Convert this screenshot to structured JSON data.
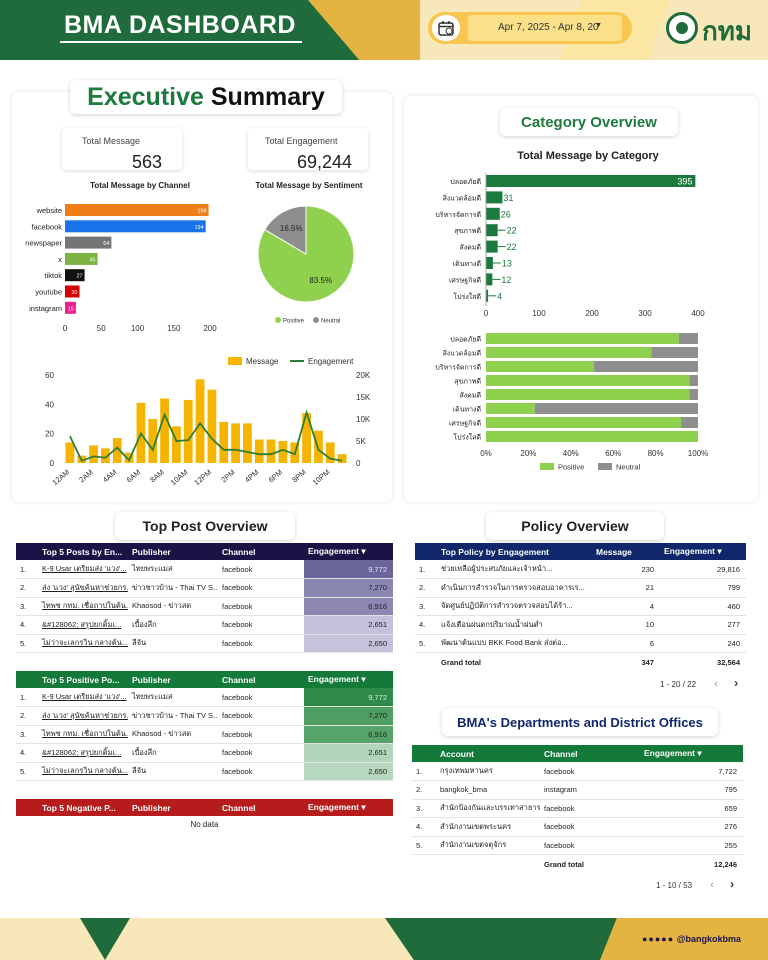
{
  "header": {
    "title": "BMA DASHBOARD",
    "date_range": "Apr 7, 2025 - Apr 8, 20",
    "logo_text": "กทม"
  },
  "executive": {
    "title_a": "Executive",
    "title_b": "Summary",
    "total_message_label": "Total Message",
    "total_message_value": "563",
    "total_engagement_label": "Total Engagement",
    "total_engagement_value": "69,244"
  },
  "channel_chart": {
    "title": "Total Message by Channel",
    "type": "bar",
    "categories": [
      "website",
      "facebook",
      "newspaper",
      "x",
      "tiktok",
      "youtube",
      "instagram"
    ],
    "values": [
      198,
      194,
      64,
      45,
      27,
      20,
      15
    ],
    "colors": [
      "#f07d16",
      "#1a73e8",
      "#757575",
      "#7cb342",
      "#111111",
      "#d50000",
      "#e91e8c"
    ],
    "xticks": [
      "0",
      "50",
      "100",
      "150",
      "200"
    ],
    "xlim": [
      0,
      200
    ]
  },
  "sentiment_chart": {
    "title": "Total Message by Sentiment",
    "type": "pie",
    "slices": [
      {
        "name": "Positive",
        "value": 83.5,
        "label": "83.5%",
        "color": "#8fd14f"
      },
      {
        "name": "Neutral",
        "value": 16.5,
        "label": "16.5%",
        "color": "#8e8e8e"
      }
    ]
  },
  "time_chart": {
    "type": "bar+line",
    "legend_message": "Message",
    "legend_engagement": "Engagement",
    "categories": [
      "12AM",
      "1AM",
      "2AM",
      "3AM",
      "4AM",
      "5AM",
      "6AM",
      "7AM",
      "8AM",
      "9AM",
      "10AM",
      "11AM",
      "12PM",
      "1PM",
      "2PM",
      "3PM",
      "4PM",
      "5PM",
      "6PM",
      "7PM",
      "8PM",
      "9PM",
      "10PM",
      "11PM"
    ],
    "x_tick_labels": [
      "12AM",
      "2AM",
      "4AM",
      "6AM",
      "8AM",
      "10AM",
      "12PM",
      "2PM",
      "4PM",
      "6PM",
      "8PM",
      "10PM"
    ],
    "message": [
      14,
      5,
      12,
      10,
      17,
      7,
      41,
      30,
      44,
      25,
      43,
      57,
      50,
      28,
      27,
      27,
      16,
      16,
      15,
      14,
      34,
      22,
      14,
      6
    ],
    "engagement": [
      6100,
      500,
      1500,
      1200,
      3500,
      600,
      6700,
      3000,
      11000,
      5000,
      5200,
      9000,
      5500,
      3000,
      3000,
      2500,
      2000,
      2000,
      3000,
      2000,
      11500,
      3000,
      1000,
      500
    ],
    "y_left_ticks": [
      "0",
      "20",
      "40",
      "60"
    ],
    "y_left_max": 60,
    "y_right_ticks": [
      "0",
      "5K",
      "10K",
      "15K",
      "20K"
    ],
    "y_right_max": 20000,
    "bar_color": "#f4b400",
    "line_color": "#2e7d32"
  },
  "category": {
    "title": "Category Overview",
    "chart_title": "Total Message by Category",
    "type": "bar",
    "categories": [
      "ปลอดภัยดี",
      "สิ่งแวดล้อมดี",
      "บริหารจัดการดี",
      "สุขภาพดี",
      "สังคมดี",
      "เดินทางดี",
      "เศรษฐกิจดี",
      "โปร่งใสดี"
    ],
    "values": [
      395,
      31,
      26,
      22,
      22,
      13,
      12,
      4
    ],
    "xticks": [
      "0",
      "100",
      "200",
      "300",
      "400"
    ],
    "xlim": [
      0,
      400
    ],
    "bar_color": "#1b7a3c"
  },
  "category_sentiment": {
    "type": "stacked-bar-100",
    "positive": [
      91,
      78,
      51,
      96,
      96,
      23,
      92,
      100
    ],
    "xticks": [
      "0%",
      "20%",
      "40%",
      "60%",
      "80%",
      "100%"
    ],
    "legend_positive": "Positive",
    "legend_neutral": "Neutral",
    "positive_color": "#8fd14f",
    "neutral_color": "#8e8e8e"
  },
  "top_post": {
    "title": "Top Post Overview",
    "cols": {
      "publisher": "Publisher",
      "channel": "Channel",
      "engagement": "Engagement ▾"
    },
    "all_header": "Top 5 Posts by En...",
    "positive_header": "Top 5 Positive Po...",
    "negative_header": "Top 5 Negative P...",
    "no_data": "No data",
    "rows": [
      {
        "n": "1.",
        "post": "K-9 Usar เตรียมส่ง 'แวง'...",
        "publisher": "ไทยพระแมส",
        "channel": "facebook",
        "engagement": "9,772"
      },
      {
        "n": "2.",
        "post": "ส่ง 'แวง' สุนัขค้นหาช่วยกร...",
        "publisher": "ข่าวชาวบ้าน - Thai TV S...",
        "channel": "facebook",
        "engagement": "7,270"
      },
      {
        "n": "3.",
        "post": "ไทพช กทม. เชื่อถาปในต้น...",
        "publisher": "Khaosod - ข่าวสด",
        "channel": "facebook",
        "engagement": "6,916"
      },
      {
        "n": "4.",
        "post": "&#128062; สรุปยกติ้มเ...",
        "publisher": "เบื้องลึก",
        "channel": "facebook",
        "engagement": "2,651"
      },
      {
        "n": "5.",
        "post": "ไม่ว่าจะเลกรวิน กลางต้น...",
        "publisher": "ลีจัน",
        "channel": "facebook",
        "engagement": "2,650"
      }
    ]
  },
  "policy": {
    "title": "Policy Overview",
    "cols": {
      "policy": "Top Policy by Engagement",
      "message": "Message",
      "engagement": "Engagement ▾"
    },
    "rows": [
      {
        "n": "1.",
        "policy": "ช่วยเหลือผู้ประสบภัยและเจ้าหน้า...",
        "message": "230",
        "engagement": "29,816"
      },
      {
        "n": "2.",
        "policy": "ดำเนินการสำรวจในการตรวจสอบอาคารเร...",
        "message": "21",
        "engagement": "799"
      },
      {
        "n": "3.",
        "policy": "จัดศูนย์ปฏิบัติการสำรวจตรวจสอบได้ร้า...",
        "message": "4",
        "engagement": "460"
      },
      {
        "n": "4.",
        "policy": "แจ้งเตือนฝนตกปริมาณน้ำฝนต่ำ",
        "message": "10",
        "engagement": "277"
      },
      {
        "n": "5.",
        "policy": "พัฒนาต้นแบบ BKK Food Bank ส่งต่อ...",
        "message": "6",
        "engagement": "240"
      }
    ],
    "total_label": "Grand total",
    "total_message": "347",
    "total_engagement": "32,564",
    "pager": "1 - 20 / 22"
  },
  "departments": {
    "title": "BMA's Departments and District Offices",
    "cols": {
      "account": "Account",
      "channel": "Channel",
      "engagement": "Engagement ▾"
    },
    "rows": [
      {
        "n": "1.",
        "account": "กรุงเทพมหานคร",
        "channel": "facebook",
        "engagement": "7,722"
      },
      {
        "n": "2.",
        "account": "bangkok_bma",
        "channel": "instagram",
        "engagement": "795"
      },
      {
        "n": "3.",
        "account": "สำนักป้องกันและบรรเทาสาธารณ...",
        "channel": "facebook",
        "engagement": "659"
      },
      {
        "n": "4.",
        "account": "สำนักงานเขตพระนคร",
        "channel": "facebook",
        "engagement": "276"
      },
      {
        "n": "5.",
        "account": "สำนักงานเขตจตุจักร",
        "channel": "facebook",
        "engagement": "255"
      }
    ],
    "total_label": "Grand total",
    "total_engagement": "12,246",
    "pager": "1 - 10 / 53"
  },
  "footer": {
    "handle": "@bangkokbma"
  }
}
